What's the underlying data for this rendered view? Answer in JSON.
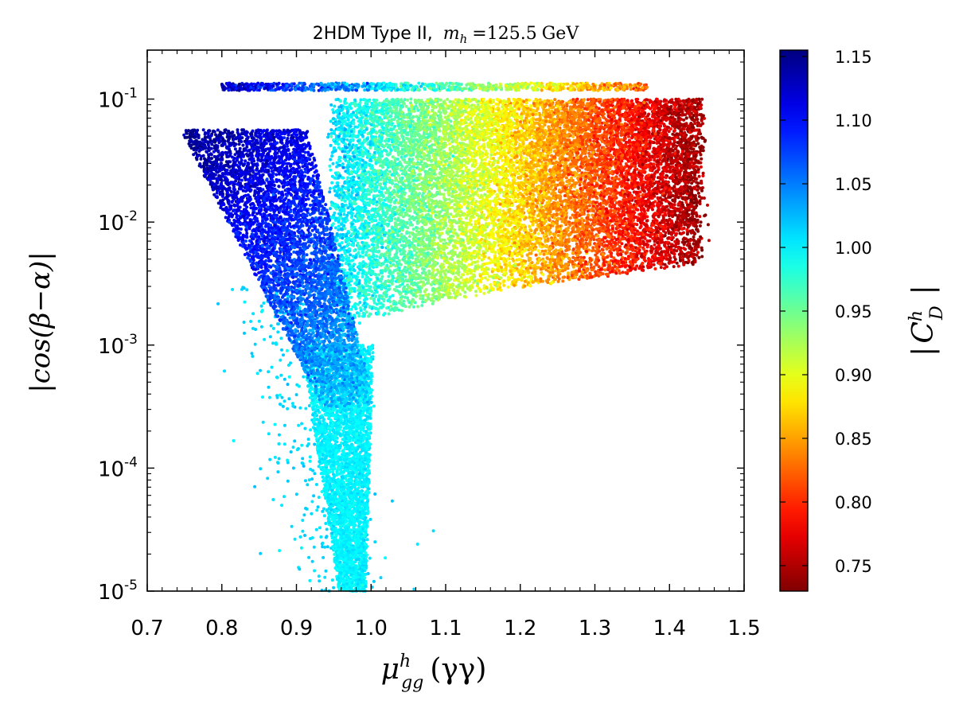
{
  "chart_data": {
    "type": "scatter",
    "title": {
      "prefix": "2HDM Type II,",
      "mass_symbol": "m",
      "mass_subscript": "h",
      "mass_value": "=125.5",
      "mass_unit": "GeV"
    },
    "xlabel": {
      "symbol": "μ",
      "superscript": "h",
      "subscript": "gg",
      "argument": "(γγ)"
    },
    "ylabel": "|cos(β−α)|",
    "colorbar_label": {
      "symbol": "C",
      "superscript": "h",
      "subscript": "D",
      "bar": "|"
    },
    "x_range": [
      0.7,
      1.5
    ],
    "y_range": [
      1e-05,
      0.25
    ],
    "y_scale": "log",
    "x_ticks": [
      "0.7",
      "0.8",
      "0.9",
      "1.0",
      "1.1",
      "1.2",
      "1.3",
      "1.4",
      "1.5"
    ],
    "x_tick_values": [
      0.7,
      0.8,
      0.9,
      1.0,
      1.1,
      1.2,
      1.3,
      1.4,
      1.5
    ],
    "y_ticks": [
      {
        "value": 1e-05,
        "base": "10",
        "exp": "-5"
      },
      {
        "value": 0.0001,
        "base": "10",
        "exp": "-4"
      },
      {
        "value": 0.001,
        "base": "10",
        "exp": "-3"
      },
      {
        "value": 0.01,
        "base": "10",
        "exp": "-2"
      },
      {
        "value": 0.1,
        "base": "10",
        "exp": "-1"
      }
    ],
    "colorbar": {
      "range": [
        0.73,
        1.155
      ],
      "ticks": [
        "0.75",
        "0.80",
        "0.85",
        "0.90",
        "0.95",
        "1.00",
        "1.05",
        "1.10",
        "1.15"
      ],
      "tick_values": [
        0.75,
        0.8,
        0.85,
        0.9,
        0.95,
        1.0,
        1.05,
        1.1,
        1.15
      ],
      "colormap": "jet"
    },
    "regions": [
      {
        "name": "blue-arm",
        "x_center_at_top": 0.83,
        "x_center_at_bottom": 0.97,
        "log_y_top": -1.25,
        "log_y_bottom": -3.5,
        "color_value_top": 1.13,
        "color_value_bottom": 1.02,
        "point_count": 5000
      },
      {
        "name": "funnel-stem",
        "x_range": [
          0.93,
          1.0
        ],
        "log_y_range": [
          -5.0,
          -3.0
        ],
        "color_value": 1.0,
        "point_count": 3500
      },
      {
        "name": "upper-band",
        "x_range": [
          0.95,
          1.44
        ],
        "log_y_top": -1.0,
        "log_y_bottom_at_left": -3.0,
        "log_y_bottom_at_right": -2.35,
        "color_value_left": 1.01,
        "color_value_right": 0.74,
        "point_count": 14000
      },
      {
        "name": "top-strip",
        "x_range": [
          0.8,
          1.37
        ],
        "log_y_value": -0.87,
        "color_value_left": 1.13,
        "color_value_right": 0.82,
        "point_count": 900
      },
      {
        "name": "sparse-tail",
        "x_range": [
          0.83,
          1.0
        ],
        "log_y_range": [
          -5.0,
          -2.5
        ],
        "color_value": 1.01,
        "point_count": 400
      }
    ]
  }
}
